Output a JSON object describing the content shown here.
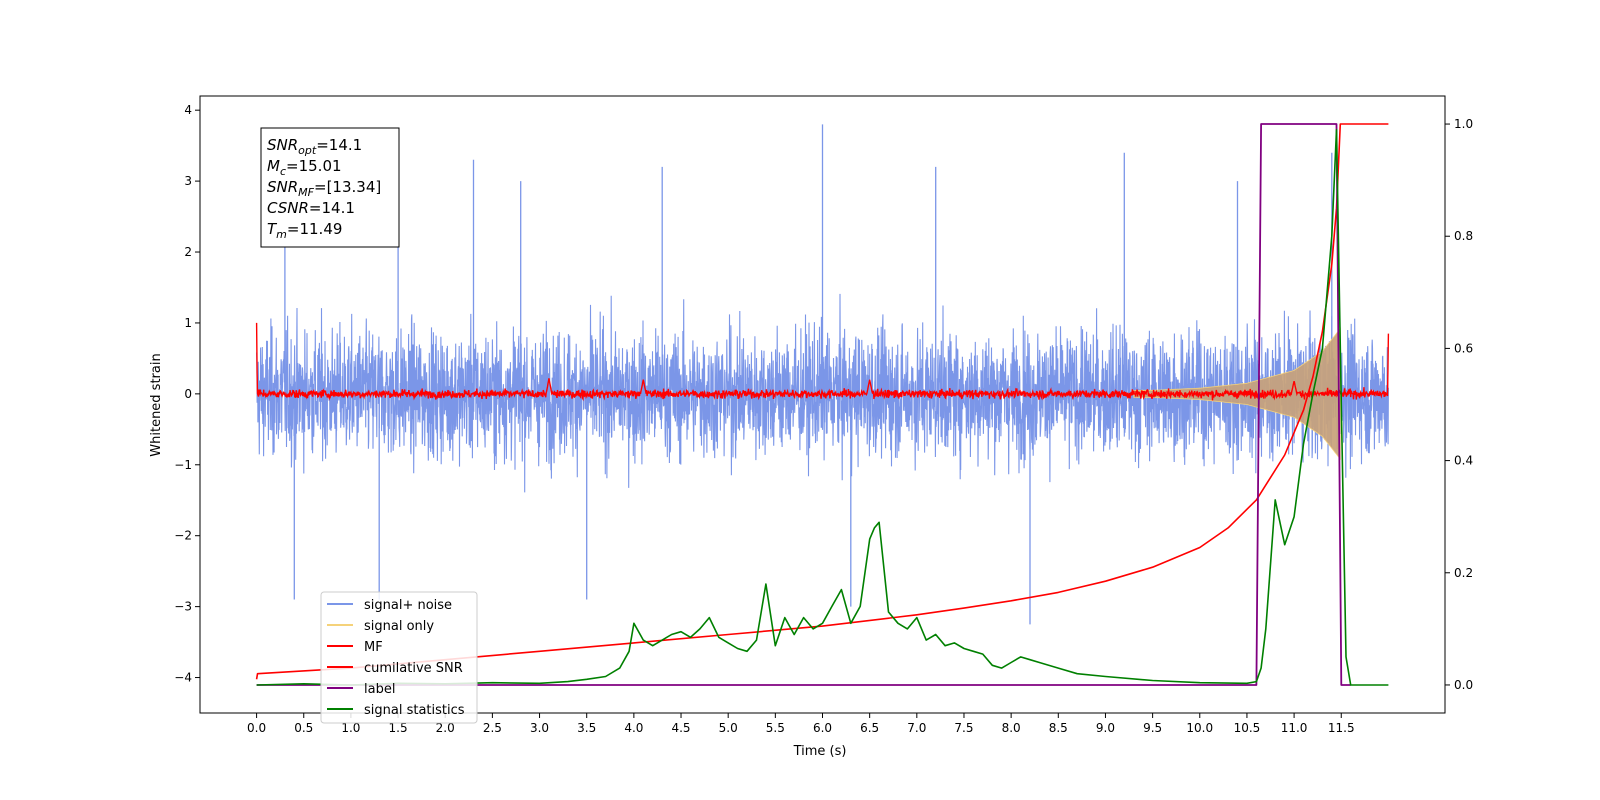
{
  "chart_data": {
    "type": "line",
    "xlabel": "Time (s)",
    "ylabel": "Whitened strain",
    "xlim": [
      -0.6,
      12.6
    ],
    "ylim": [
      -4.5,
      4.2
    ],
    "y2lim": [
      -0.05,
      1.05
    ],
    "x_ticks": [
      0.0,
      0.5,
      1.0,
      1.5,
      2.0,
      2.5,
      3.0,
      3.5,
      4.0,
      4.5,
      5.0,
      5.5,
      6.0,
      6.5,
      7.0,
      7.5,
      8.0,
      8.5,
      9.0,
      9.5,
      10.0,
      10.5,
      11.0,
      11.5
    ],
    "x_tick_labels": [
      "0.0",
      "0.5",
      "1.0",
      "1.5",
      "2.0",
      "2.5",
      "3.0",
      "3.5",
      "4.0",
      "4.5",
      "5.0",
      "5.5",
      "6.0",
      "6.5",
      "7.0",
      "7.5",
      "8.0",
      "8.5",
      "9.0",
      "9.5",
      "10.0",
      "10.5",
      "11.0",
      "11.5"
    ],
    "y_ticks": [
      -4,
      -3,
      -2,
      -1,
      0,
      1,
      2,
      3,
      4
    ],
    "y_tick_labels": [
      "−4",
      "−3",
      "−2",
      "−1",
      "0",
      "1",
      "2",
      "3",
      "4"
    ],
    "y2_ticks": [
      0.0,
      0.2,
      0.4,
      0.6,
      0.8,
      1.0
    ],
    "y2_tick_labels": [
      "0.0",
      "0.2",
      "0.4",
      "0.6",
      "0.8",
      "1.0"
    ],
    "legend_position": "lower-left",
    "grid": false,
    "annotation": {
      "lines": [
        {
          "base": "SNR",
          "sub": "opt",
          "value": "=14.1"
        },
        {
          "base": "M",
          "sub": "c",
          "value": "=15.01"
        },
        {
          "base": "SNR",
          "sub": "MF",
          "value": "=[13.34]"
        },
        {
          "base": "CSNR",
          "sub": "",
          "value": "=14.1"
        },
        {
          "base": "T",
          "sub": "m",
          "value": "=11.49"
        }
      ]
    },
    "series": [
      {
        "name": "signal+ noise",
        "color": "#7b96e8",
        "axis": "left",
        "kind": "noise",
        "t_start": 0.0,
        "t_end": 12.0,
        "noise_amplitude": 1.0,
        "peak_extremes": [
          {
            "x": 0.3,
            "y": 2.6
          },
          {
            "x": 0.4,
            "y": -2.9
          },
          {
            "x": 1.3,
            "y": -2.9
          },
          {
            "x": 1.5,
            "y": 2.7
          },
          {
            "x": 2.3,
            "y": 3.3
          },
          {
            "x": 2.8,
            "y": 3.0
          },
          {
            "x": 3.5,
            "y": -2.9
          },
          {
            "x": 4.3,
            "y": 3.2
          },
          {
            "x": 6.0,
            "y": 3.8
          },
          {
            "x": 6.3,
            "y": -3.0
          },
          {
            "x": 7.2,
            "y": 3.2
          },
          {
            "x": 8.2,
            "y": -3.25
          },
          {
            "x": 9.2,
            "y": 3.4
          },
          {
            "x": 10.4,
            "y": 3.0
          },
          {
            "x": 11.4,
            "y": 3.4
          }
        ]
      },
      {
        "name": "signal only",
        "color": "#f5d27a",
        "axis": "left",
        "kind": "chirp",
        "envelope": [
          {
            "x": 0.0,
            "y": 0.02
          },
          {
            "x": 9.5,
            "y": 0.05
          },
          {
            "x": 10.0,
            "y": 0.08
          },
          {
            "x": 10.5,
            "y": 0.15
          },
          {
            "x": 11.0,
            "y": 0.33
          },
          {
            "x": 11.3,
            "y": 0.6
          },
          {
            "x": 11.49,
            "y": 0.92
          }
        ]
      },
      {
        "name": "MF",
        "color": "#ff0000",
        "axis": "left",
        "kind": "mf",
        "t_start": 0.0,
        "t_end": 12.0,
        "mf_amplitude": 0.07,
        "start_value": 1.0,
        "end_value": 0.85,
        "bumps": [
          {
            "x": 3.1,
            "y": 0.22
          },
          {
            "x": 4.1,
            "y": 0.2
          },
          {
            "x": 6.5,
            "y": 0.2
          },
          {
            "x": 11.0,
            "y": 0.18
          }
        ]
      },
      {
        "name": "cumilative SNR",
        "color": "#ff0000",
        "axis": "right",
        "x": [
          0.0,
          0.01,
          1.0,
          2.0,
          3.0,
          4.0,
          5.0,
          6.0,
          7.0,
          7.5,
          8.0,
          8.5,
          9.0,
          9.5,
          10.0,
          10.3,
          10.6,
          10.9,
          11.1,
          11.2,
          11.3,
          11.4,
          11.45,
          11.49,
          11.6,
          12.0
        ],
        "values": [
          0.01,
          0.02,
          0.03,
          0.045,
          0.06,
          0.075,
          0.09,
          0.105,
          0.125,
          0.137,
          0.15,
          0.165,
          0.185,
          0.21,
          0.245,
          0.28,
          0.33,
          0.41,
          0.49,
          0.55,
          0.63,
          0.75,
          0.85,
          1.0,
          1.0,
          1.0
        ]
      },
      {
        "name": "label",
        "color": "#800080",
        "axis": "right",
        "x": [
          0.0,
          10.6,
          10.65,
          11.45,
          11.5,
          11.6
        ],
        "values": [
          0.0,
          0.0,
          1.0,
          1.0,
          0.0,
          0.0
        ]
      },
      {
        "name": "signal statistics",
        "color": "#008000",
        "axis": "right",
        "x": [
          0.0,
          0.5,
          1.0,
          1.5,
          2.0,
          2.5,
          3.0,
          3.3,
          3.5,
          3.7,
          3.85,
          3.95,
          4.0,
          4.1,
          4.2,
          4.3,
          4.4,
          4.5,
          4.6,
          4.7,
          4.8,
          4.9,
          5.0,
          5.1,
          5.2,
          5.3,
          5.4,
          5.5,
          5.6,
          5.7,
          5.8,
          5.9,
          6.0,
          6.1,
          6.2,
          6.3,
          6.4,
          6.5,
          6.55,
          6.6,
          6.7,
          6.8,
          6.9,
          7.0,
          7.1,
          7.2,
          7.3,
          7.4,
          7.5,
          7.6,
          7.7,
          7.8,
          7.9,
          8.0,
          8.1,
          8.2,
          8.3,
          8.5,
          8.7,
          9.0,
          9.5,
          10.0,
          10.5,
          10.6,
          10.65,
          10.7,
          10.8,
          10.9,
          11.0,
          11.1,
          11.2,
          11.3,
          11.4,
          11.45,
          11.5,
          11.55,
          11.6,
          12.0
        ],
        "values": [
          0.0,
          0.002,
          0.0,
          0.003,
          0.002,
          0.004,
          0.003,
          0.006,
          0.01,
          0.015,
          0.03,
          0.06,
          0.11,
          0.08,
          0.07,
          0.08,
          0.09,
          0.095,
          0.085,
          0.1,
          0.12,
          0.085,
          0.075,
          0.065,
          0.06,
          0.08,
          0.18,
          0.07,
          0.12,
          0.09,
          0.12,
          0.1,
          0.11,
          0.14,
          0.17,
          0.11,
          0.14,
          0.26,
          0.28,
          0.29,
          0.13,
          0.11,
          0.1,
          0.12,
          0.08,
          0.09,
          0.07,
          0.075,
          0.065,
          0.06,
          0.055,
          0.035,
          0.03,
          0.04,
          0.05,
          0.045,
          0.04,
          0.03,
          0.02,
          0.015,
          0.008,
          0.004,
          0.003,
          0.006,
          0.03,
          0.1,
          0.33,
          0.25,
          0.3,
          0.43,
          0.52,
          0.6,
          0.8,
          0.99,
          0.5,
          0.05,
          0.0,
          0.0
        ]
      }
    ]
  }
}
